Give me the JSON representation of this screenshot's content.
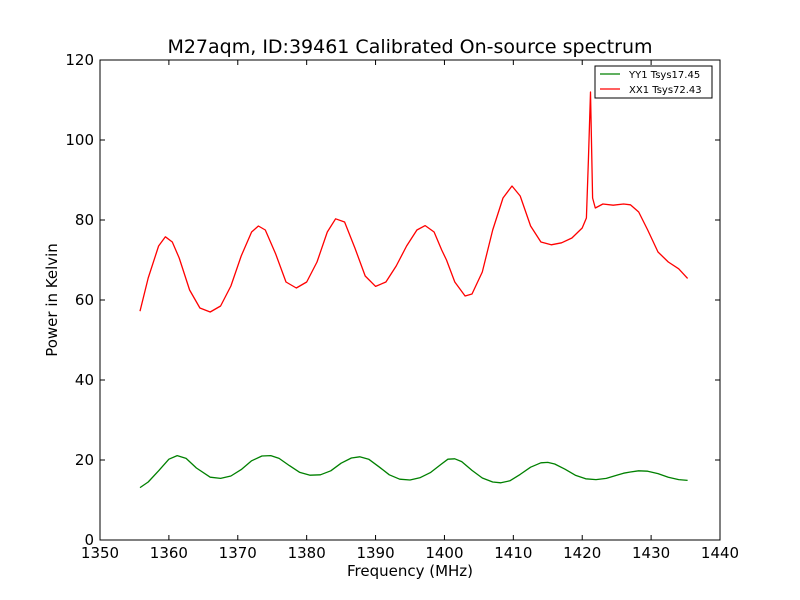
{
  "chart_data": {
    "type": "line",
    "title": "M27aqm, ID:39461 Calibrated On-source spectrum",
    "xlabel": "Frequency (MHz)",
    "ylabel": "Power in Kelvin",
    "xlim": [
      1350,
      1440
    ],
    "ylim": [
      0,
      120
    ],
    "xticks": [
      1350,
      1360,
      1370,
      1380,
      1390,
      1400,
      1410,
      1420,
      1430,
      1440
    ],
    "yticks": [
      0,
      20,
      40,
      60,
      80,
      100,
      120
    ],
    "xtick_labels": [
      "1350",
      "1360",
      "1370",
      "1380",
      "1390",
      "1400",
      "1410",
      "1420",
      "1430",
      "1440"
    ],
    "ytick_labels": [
      "0",
      "20",
      "40",
      "60",
      "80",
      "100",
      "120"
    ],
    "grid": false,
    "legend_position": "top-right",
    "series": [
      {
        "name": "YY1 Tsys17.45",
        "color": "#008000",
        "x": [
          1355.8,
          1357,
          1358.5,
          1360,
          1361.2,
          1362.5,
          1364,
          1366,
          1367.5,
          1369,
          1370.5,
          1372,
          1373.5,
          1374.8,
          1376,
          1377.5,
          1379,
          1380.5,
          1382,
          1383.5,
          1385,
          1386.5,
          1387.7,
          1389,
          1390.5,
          1392,
          1393.5,
          1395,
          1396.5,
          1398,
          1399.5,
          1400.5,
          1401.5,
          1402.5,
          1404,
          1405.5,
          1407,
          1408.2,
          1409.5,
          1411,
          1412.5,
          1414,
          1415,
          1416,
          1417.5,
          1419,
          1420.5,
          1422,
          1423.5,
          1425,
          1426,
          1427,
          1428.2,
          1429.5,
          1431,
          1432.5,
          1434,
          1435.3
        ],
        "y": [
          13.1,
          14.5,
          17.3,
          20.2,
          21.1,
          20.4,
          18.0,
          15.7,
          15.4,
          16.0,
          17.6,
          19.8,
          21.0,
          21.1,
          20.4,
          18.6,
          16.9,
          16.2,
          16.3,
          17.3,
          19.2,
          20.5,
          20.8,
          20.2,
          18.3,
          16.3,
          15.2,
          15.0,
          15.6,
          16.9,
          18.9,
          20.2,
          20.3,
          19.6,
          17.4,
          15.5,
          14.5,
          14.3,
          14.8,
          16.4,
          18.2,
          19.3,
          19.4,
          19.0,
          17.7,
          16.2,
          15.3,
          15.1,
          15.4,
          16.2,
          16.7,
          17.0,
          17.3,
          17.2,
          16.6,
          15.7,
          15.1,
          14.9
        ]
      },
      {
        "name": "XX1 Tsys72.43",
        "color": "#ff0000",
        "x": [
          1355.8,
          1357,
          1358.5,
          1359.5,
          1360.5,
          1361.5,
          1363,
          1364.5,
          1366,
          1367.5,
          1369,
          1370.5,
          1372,
          1373,
          1374,
          1375.5,
          1377,
          1378.5,
          1380,
          1381.5,
          1383,
          1384.2,
          1385.5,
          1387,
          1388.5,
          1390,
          1391.5,
          1393,
          1394.5,
          1396,
          1397.2,
          1398.5,
          1399.6,
          1400.3,
          1401.5,
          1403,
          1404,
          1405.5,
          1407,
          1408.5,
          1409.8,
          1411,
          1412.5,
          1414,
          1415.5,
          1417,
          1418.5,
          1420,
          1420.6,
          1420.9,
          1421.2,
          1421.5,
          1421.9,
          1423,
          1424.5,
          1426,
          1427,
          1428.2,
          1429.5,
          1431,
          1432.5,
          1434,
          1435.3
        ],
        "y": [
          57.2,
          65.5,
          73.5,
          75.8,
          74.5,
          70.5,
          62.5,
          58.0,
          57.0,
          58.5,
          63.5,
          71.0,
          77.0,
          78.5,
          77.5,
          71.5,
          64.5,
          63.0,
          64.5,
          69.5,
          77.0,
          80.3,
          79.5,
          73.0,
          66.0,
          63.4,
          64.5,
          68.5,
          73.5,
          77.5,
          78.6,
          77.0,
          72.5,
          70.0,
          64.5,
          61.0,
          61.5,
          67.0,
          77.5,
          85.5,
          88.5,
          86.0,
          78.5,
          74.5,
          73.8,
          74.3,
          75.5,
          78.0,
          80.5,
          95.0,
          112.0,
          85.5,
          83.0,
          84.0,
          83.7,
          84.0,
          83.8,
          82.0,
          77.5,
          72.0,
          69.5,
          67.8,
          65.4
        ]
      }
    ]
  }
}
